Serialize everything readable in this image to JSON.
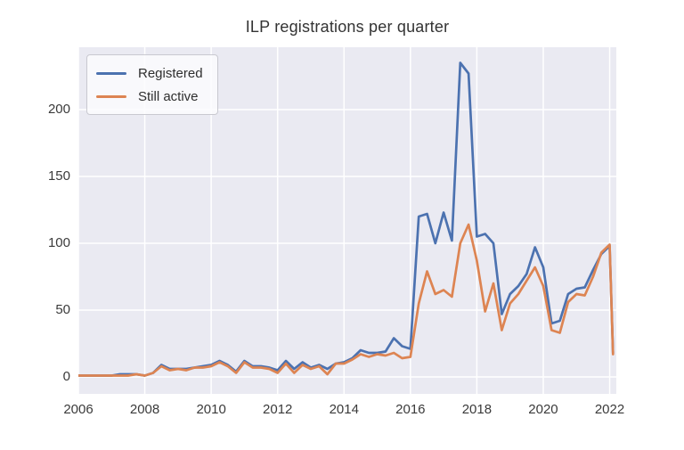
{
  "chart_data": {
    "type": "line",
    "title": "ILP registrations per quarter",
    "xlabel": "",
    "ylabel": "",
    "grid": true,
    "legend_position": "upper left",
    "plot_bg": "#eaeaf2",
    "grid_color": "#ffffff",
    "text_color": "#3a3a3a",
    "xlim": [
      2006,
      2022.2
    ],
    "ylim": [
      -12.7,
      246.7
    ],
    "x_ticks": [
      2006,
      2008,
      2010,
      2012,
      2014,
      2016,
      2018,
      2020,
      2022
    ],
    "y_ticks": [
      0,
      50,
      100,
      150,
      200
    ],
    "x": [
      2006.0,
      2006.25,
      2006.5,
      2006.75,
      2007.0,
      2007.25,
      2007.5,
      2007.75,
      2008.0,
      2008.25,
      2008.5,
      2008.75,
      2009.0,
      2009.25,
      2009.5,
      2009.75,
      2010.0,
      2010.25,
      2010.5,
      2010.75,
      2011.0,
      2011.25,
      2011.5,
      2011.75,
      2012.0,
      2012.25,
      2012.5,
      2012.75,
      2013.0,
      2013.25,
      2013.5,
      2013.75,
      2014.0,
      2014.25,
      2014.5,
      2014.75,
      2015.0,
      2015.25,
      2015.5,
      2015.75,
      2016.0,
      2016.25,
      2016.5,
      2016.75,
      2017.0,
      2017.25,
      2017.5,
      2017.75,
      2018.0,
      2018.25,
      2018.5,
      2018.75,
      2019.0,
      2019.25,
      2019.5,
      2019.75,
      2020.0,
      2020.25,
      2020.5,
      2020.75,
      2021.0,
      2021.25,
      2021.5,
      2021.75,
      2022.0,
      2022.1
    ],
    "series": [
      {
        "name": "Registered",
        "color": "#4c72b0",
        "values": [
          1,
          1,
          1,
          1,
          1,
          2,
          2,
          2,
          1,
          3,
          9,
          6,
          6,
          6,
          7,
          8,
          9,
          12,
          9,
          4,
          12,
          8,
          8,
          7,
          5,
          12,
          6,
          11,
          7,
          9,
          6,
          10,
          11,
          14,
          20,
          18,
          18,
          19,
          29,
          23,
          21,
          120,
          122,
          100,
          123,
          102,
          235,
          227,
          105,
          107,
          100,
          47,
          62,
          68,
          77,
          97,
          82,
          40,
          42,
          62,
          66,
          67,
          80,
          92,
          98,
          18
        ]
      },
      {
        "name": "Still active",
        "color": "#dd8452",
        "values": [
          1,
          1,
          1,
          1,
          1,
          1,
          1,
          2,
          1,
          3,
          8,
          5,
          6,
          5,
          7,
          7,
          8,
          11,
          8,
          3,
          11,
          7,
          7,
          6,
          3,
          10,
          3,
          9,
          6,
          8,
          2,
          10,
          10,
          13,
          17,
          15,
          17,
          16,
          18,
          14,
          15,
          55,
          79,
          62,
          65,
          60,
          100,
          114,
          87,
          49,
          70,
          35,
          55,
          62,
          72,
          82,
          68,
          35,
          33,
          56,
          62,
          61,
          75,
          93,
          99,
          17
        ]
      }
    ]
  }
}
